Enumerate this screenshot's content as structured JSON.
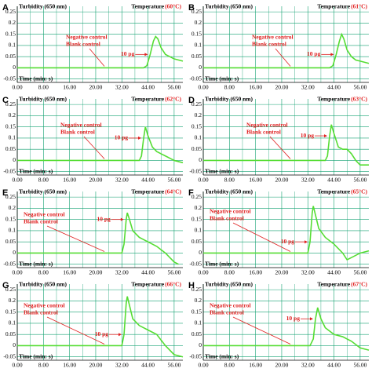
{
  "chart_data": [
    {
      "type": "line",
      "panel": "A",
      "title": "Turbidity (650 nm)",
      "temperature_label": "Temperature",
      "temperature": "(60°C)",
      "xlabel": "Time (min: s)",
      "annotations": [
        "Negative control",
        "Blank control"
      ],
      "x": [
        0,
        42,
        43.5,
        45,
        46.5,
        47.5,
        48.5,
        50,
        52,
        54,
        56,
        60
      ],
      "series": [
        {
          "name": "10 pg",
          "color": "#55dd33",
          "values": [
            0,
            0,
            0.01,
            0.06,
            0.12,
            0.14,
            0.13,
            0.09,
            0.06,
            0.05,
            0.04,
            0.03
          ]
        }
      ],
      "xlim": [
        0,
        60
      ],
      "xticks": [
        {
          "value": 0,
          "label": "0.00"
        },
        {
          "value": 8,
          "label": "8.00"
        },
        {
          "value": 16,
          "label": "16.00"
        },
        {
          "value": 20,
          "label": "20.00"
        },
        {
          "value": 32,
          "label": "32.00"
        },
        {
          "value": 44,
          "label": "44.00"
        },
        {
          "value": 56,
          "label": "56.00"
        }
      ],
      "ylim": [
        -0.065,
        0.275
      ],
      "yticks": [
        -0.05,
        0,
        0.05,
        0.1,
        0.15,
        0.2,
        0.25
      ],
      "grid": true
    },
    {
      "type": "line",
      "panel": "B",
      "title": "Turbidity (650 nm)",
      "temperature_label": "Temperature",
      "temperature": "(61°C)",
      "xlabel": "Time (min: s)",
      "annotations": [
        "Negative control",
        "Blank control"
      ],
      "x": [
        0,
        42,
        43.5,
        45,
        46.5,
        47.5,
        48.5,
        50,
        52,
        54,
        56,
        60
      ],
      "series": [
        {
          "name": "10 pg",
          "color": "#55dd33",
          "values": [
            0,
            0,
            0.01,
            0.06,
            0.12,
            0.15,
            0.13,
            0.08,
            0.05,
            0.035,
            0.03,
            0.02
          ]
        }
      ],
      "xlim": [
        0,
        60
      ],
      "xticks": [
        {
          "value": 0,
          "label": "0.00"
        },
        {
          "value": 8,
          "label": "8.00"
        },
        {
          "value": 16,
          "label": "16.00"
        },
        {
          "value": 20,
          "label": "20.00"
        },
        {
          "value": 32,
          "label": "32.00"
        },
        {
          "value": 44,
          "label": "44.00"
        },
        {
          "value": 56,
          "label": "56.00"
        }
      ],
      "ylim": [
        -0.065,
        0.275
      ],
      "yticks": [
        -0.05,
        0,
        0.05,
        0.1,
        0.15,
        0.2,
        0.25
      ],
      "grid": true
    },
    {
      "type": "line",
      "panel": "C",
      "title": "Turbidity (650 nm)",
      "temperature_label": "Temperature",
      "temperature": "(62°C)",
      "xlabel": "Time (min: s)",
      "annotations": [
        "Negative control",
        "Blank control"
      ],
      "x": [
        0,
        40,
        41,
        42,
        42.8,
        44,
        46,
        48,
        50,
        52,
        54,
        56,
        60
      ],
      "series": [
        {
          "name": "10 pg",
          "color": "#55dd33",
          "values": [
            0,
            0,
            0.02,
            0.1,
            0.15,
            0.11,
            0.06,
            0.04,
            0.03,
            0.02,
            0.01,
            0,
            -0.01
          ]
        }
      ],
      "xlim": [
        0,
        60
      ],
      "xticks": [
        {
          "value": 0,
          "label": "0.00"
        },
        {
          "value": 8,
          "label": "8.00"
        },
        {
          "value": 16,
          "label": "16.00"
        },
        {
          "value": 20,
          "label": "20.00"
        },
        {
          "value": 32,
          "label": "32.00"
        },
        {
          "value": 44,
          "label": "44.00"
        },
        {
          "value": 56,
          "label": "56.00"
        }
      ],
      "ylim": [
        -0.065,
        0.275
      ],
      "yticks": [
        -0.05,
        0,
        0.05,
        0.1,
        0.15,
        0.2,
        0.25
      ],
      "grid": true
    },
    {
      "type": "line",
      "panel": "D",
      "title": "Turbidity (650 nm)",
      "temperature_label": "Temperature",
      "temperature": "(63°C)",
      "xlabel": "Time (min: s)",
      "annotations": [
        "Negative control",
        "Blank control"
      ],
      "x": [
        0,
        40,
        41,
        42,
        42.8,
        44,
        46,
        48,
        50,
        52,
        54,
        56,
        60
      ],
      "series": [
        {
          "name": "10 pg",
          "color": "#55dd33",
          "values": [
            0,
            0,
            0.02,
            0.11,
            0.16,
            0.12,
            0.06,
            0.05,
            0.05,
            0.03,
            0,
            -0.02,
            -0.02
          ]
        }
      ],
      "xlim": [
        0,
        60
      ],
      "xticks": [
        {
          "value": 0,
          "label": "0.00"
        },
        {
          "value": 8,
          "label": "8.00"
        },
        {
          "value": 16,
          "label": "16.00"
        },
        {
          "value": 20,
          "label": "20.00"
        },
        {
          "value": 32,
          "label": "32.00"
        },
        {
          "value": 44,
          "label": "44.00"
        },
        {
          "value": 56,
          "label": "56.00"
        }
      ],
      "ylim": [
        -0.065,
        0.275
      ],
      "yticks": [
        -0.05,
        0,
        0.05,
        0.1,
        0.15,
        0.2,
        0.25
      ],
      "grid": true
    },
    {
      "type": "line",
      "panel": "E",
      "title": "Turbidity (650 nm)",
      "temperature_label": "Temperature",
      "temperature": "(64°C)",
      "xlabel": "Time (min: s)",
      "annotations": [
        "Negative control",
        "Blank control"
      ],
      "x": [
        0,
        32,
        33,
        34,
        34.5,
        35.5,
        37,
        40,
        44,
        48,
        52,
        56,
        58
      ],
      "series": [
        {
          "name": "10 pg",
          "color": "#55dd33",
          "values": [
            0,
            0,
            0.04,
            0.15,
            0.18,
            0.15,
            0.1,
            0.07,
            0.05,
            0.03,
            0,
            -0.04,
            -0.05
          ]
        }
      ],
      "xlim": [
        0,
        60
      ],
      "xticks": [
        {
          "value": 0,
          "label": "0.00"
        },
        {
          "value": 8,
          "label": "8.00"
        },
        {
          "value": 16,
          "label": "16.00"
        },
        {
          "value": 20,
          "label": "20.00"
        },
        {
          "value": 32,
          "label": "32.00"
        },
        {
          "value": 44,
          "label": "44.00"
        },
        {
          "value": 56,
          "label": "56.00"
        }
      ],
      "ylim": [
        -0.065,
        0.275
      ],
      "yticks": [
        -0.05,
        0,
        0.05,
        0.1,
        0.15,
        0.2,
        0.25
      ],
      "grid": true
    },
    {
      "type": "line",
      "panel": "F",
      "title": "Turbidity (650 nm)",
      "temperature_label": "Temperature",
      "temperature": "(65°C)",
      "xlabel": "Time (min: s)",
      "annotations": [
        "Negative control",
        "Blank control"
      ],
      "x": [
        0,
        32,
        33,
        34,
        34.5,
        35.5,
        37,
        40,
        44,
        48,
        50,
        52,
        56,
        60
      ],
      "series": [
        {
          "name": "10 pg",
          "color": "#55dd33",
          "values": [
            0,
            0,
            0.05,
            0.18,
            0.21,
            0.17,
            0.11,
            0.07,
            0.04,
            0,
            -0.03,
            -0.02,
            0,
            0.01
          ]
        }
      ],
      "xlim": [
        0,
        60
      ],
      "xticks": [
        {
          "value": 0,
          "label": "0.00"
        },
        {
          "value": 8,
          "label": "8.00"
        },
        {
          "value": 16,
          "label": "16.00"
        },
        {
          "value": 20,
          "label": "20.00"
        },
        {
          "value": 32,
          "label": "32.00"
        },
        {
          "value": 44,
          "label": "44.00"
        },
        {
          "value": 56,
          "label": "56.00"
        }
      ],
      "ylim": [
        -0.065,
        0.275
      ],
      "yticks": [
        -0.05,
        0,
        0.05,
        0.1,
        0.15,
        0.2,
        0.25
      ],
      "grid": true
    },
    {
      "type": "line",
      "panel": "G",
      "title": "Turbidity (650 nm)",
      "temperature_label": "Temperature",
      "temperature": "(66°C)",
      "xlabel": "Time (min: s)",
      "annotations": [
        "Negative control",
        "Blank control"
      ],
      "x": [
        0,
        32,
        33,
        34,
        34.5,
        35.5,
        37,
        40,
        44,
        48,
        52,
        56,
        60
      ],
      "series": [
        {
          "name": "10 pg",
          "color": "#55dd33",
          "values": [
            0,
            0,
            0.05,
            0.19,
            0.22,
            0.18,
            0.12,
            0.09,
            0.07,
            0.05,
            0,
            -0.04,
            -0.05
          ]
        }
      ],
      "xlim": [
        0,
        60
      ],
      "xticks": [
        {
          "value": 0,
          "label": "0.00"
        },
        {
          "value": 8,
          "label": "8.00"
        },
        {
          "value": 16,
          "label": "16.00"
        },
        {
          "value": 20,
          "label": "20.00"
        },
        {
          "value": 32,
          "label": "32.00"
        },
        {
          "value": 44,
          "label": "44.00"
        },
        {
          "value": 56,
          "label": "56.00"
        }
      ],
      "ylim": [
        -0.065,
        0.275
      ],
      "yticks": [
        -0.05,
        0,
        0.05,
        0.1,
        0.15,
        0.2,
        0.25
      ],
      "grid": true
    },
    {
      "type": "line",
      "panel": "H",
      "title": "Turbidity (650 nm)",
      "temperature_label": "Temperature",
      "temperature": "(67°C)",
      "xlabel": "Time (min: s)",
      "annotations": [
        "Negative control",
        "Blank control"
      ],
      "x": [
        0,
        33,
        34.5,
        35.5,
        36.5,
        38,
        40,
        44,
        48,
        52,
        56,
        60
      ],
      "series": [
        {
          "name": "10 pg",
          "color": "#55dd33",
          "values": [
            0,
            0,
            0.03,
            0.12,
            0.17,
            0.12,
            0.08,
            0.05,
            0.04,
            0.02,
            -0.01,
            -0.02
          ]
        }
      ],
      "xlim": [
        0,
        60
      ],
      "xticks": [
        {
          "value": 0,
          "label": "0.00"
        },
        {
          "value": 8,
          "label": "8.00"
        },
        {
          "value": 16,
          "label": "16.00"
        },
        {
          "value": 20,
          "label": "20.00"
        },
        {
          "value": 32,
          "label": "32.00"
        },
        {
          "value": 44,
          "label": "44.00"
        },
        {
          "value": 56,
          "label": "56.00"
        }
      ],
      "ylim": [
        -0.065,
        0.275
      ],
      "yticks": [
        -0.05,
        0,
        0.05,
        0.1,
        0.15,
        0.2,
        0.25
      ],
      "grid": true
    }
  ]
}
